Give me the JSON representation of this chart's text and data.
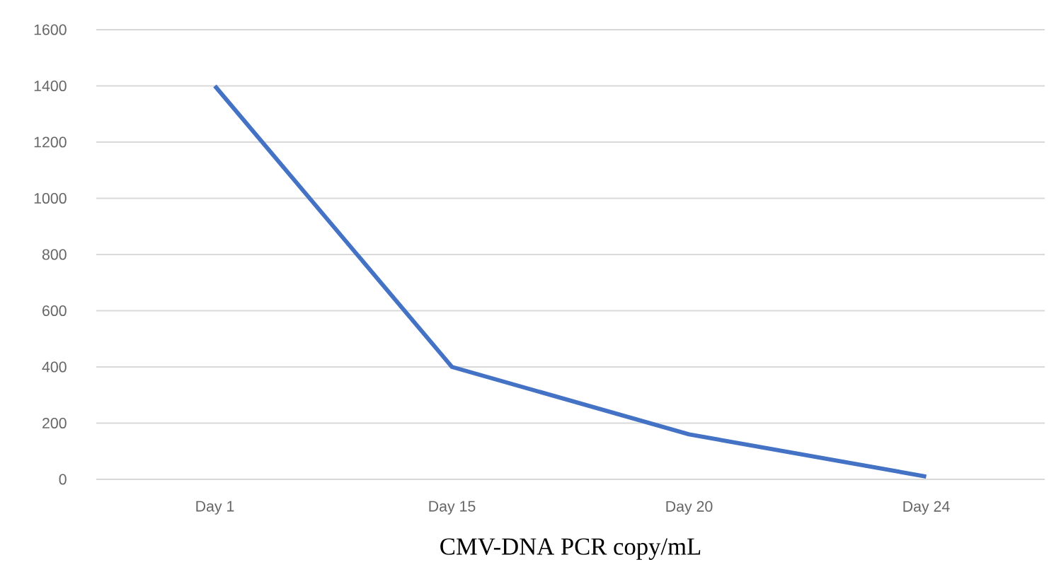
{
  "chart_data": {
    "type": "line",
    "xlabel": "CMV-DNA PCR copy/mL",
    "categories": [
      "Day 1",
      "Day 15",
      "Day 20",
      "Day 24"
    ],
    "values": [
      1400,
      400,
      160,
      10
    ],
    "color": "#4472c4",
    "ylim": [
      0,
      1600
    ],
    "yticks": [
      0,
      200,
      400,
      600,
      800,
      1000,
      1200,
      1400,
      1600
    ],
    "grid": "y"
  }
}
